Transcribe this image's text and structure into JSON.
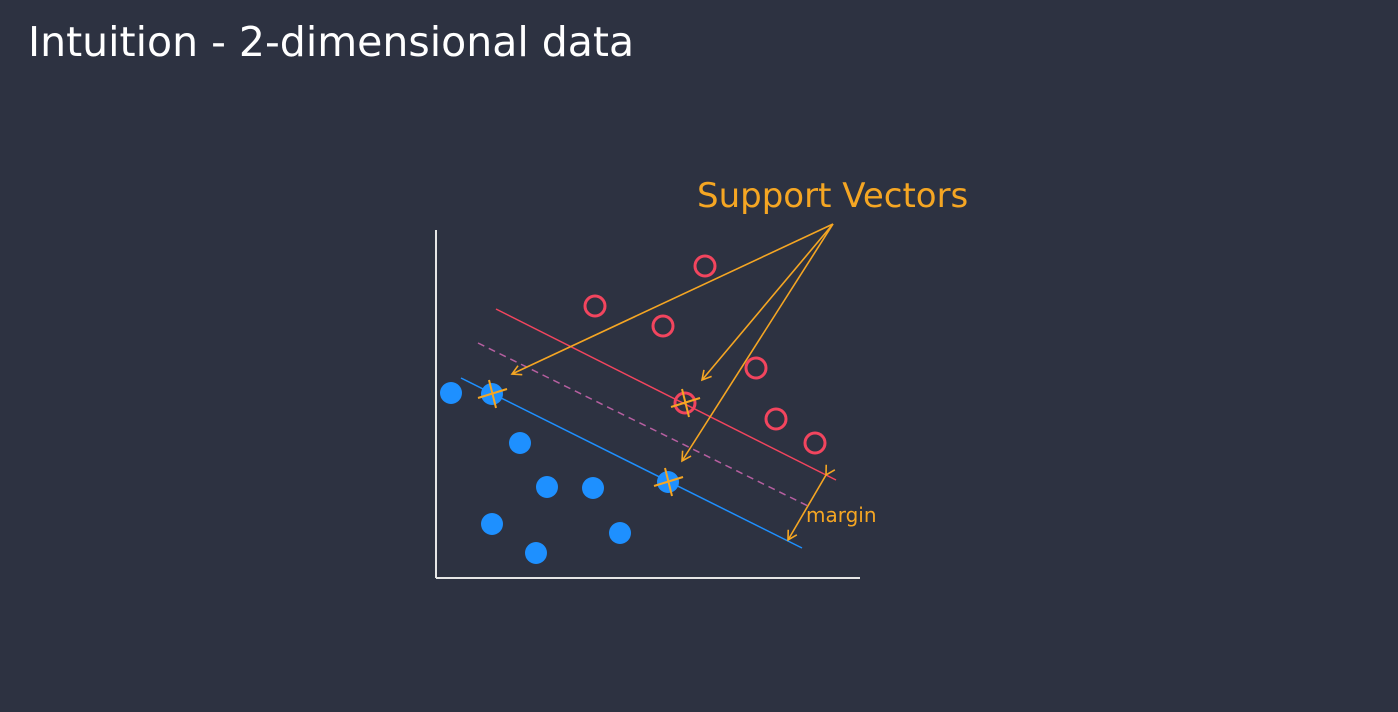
{
  "slide": {
    "title": "Intuition - 2-dimensional data"
  },
  "colors": {
    "background": "#2d3241",
    "axis": "#e6e6e6",
    "class_a": "#1e90ff",
    "class_b": "#f2455e",
    "support_accent": "#f5a623",
    "separator": "#b65fa0"
  },
  "diagram": {
    "support_vectors_label": "Support Vectors",
    "margin_label": "margin"
  }
}
